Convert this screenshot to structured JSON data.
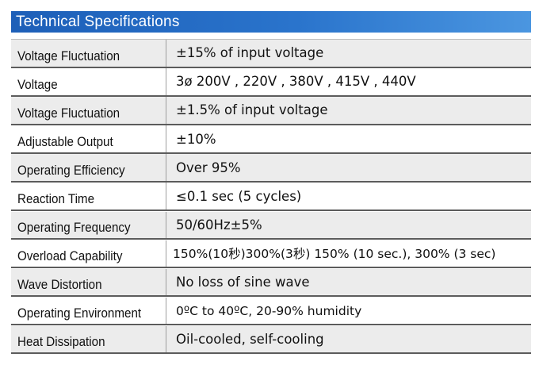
{
  "header": {
    "title": "Technical Specifications"
  },
  "rows": [
    {
      "label": "Voltage Fluctuation",
      "value": "±15% of input voltage"
    },
    {
      "label": "Voltage",
      "value": "3ø 200V , 220V , 380V , 415V , 440V"
    },
    {
      "label": "Voltage Fluctuation",
      "value": "±1.5% of input voltage"
    },
    {
      "label": "Adjustable Output",
      "value": "±10%"
    },
    {
      "label": "Operating Efficiency",
      "value": "Over 95%"
    },
    {
      "label": "Reaction Time",
      "value": "≤0.1 sec (5 cycles)"
    },
    {
      "label": "Operating Frequency",
      "value": "50/60Hz±5%"
    },
    {
      "label": "Overload Capability",
      "value": "150%(10秒)300%(3秒) 150% (10 sec.), 300% (3 sec)"
    },
    {
      "label": "Wave Distortion",
      "value": "No loss of sine wave"
    },
    {
      "label": "Operating Environment",
      "value": "0ºC to 40ºC, 20-90% humidity"
    },
    {
      "label": "Heat Dissipation",
      "value": "Oil-cooled, self-cooling"
    }
  ]
}
